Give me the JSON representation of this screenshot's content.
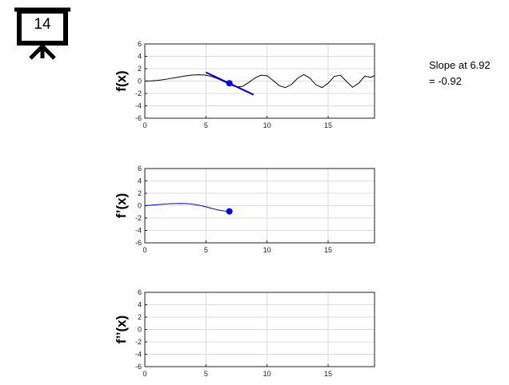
{
  "slide_badge": {
    "number": "14",
    "icon": "presentation-board-icon"
  },
  "slope_readout": {
    "line1": "Slope at 6.92",
    "line2": "= -0.92"
  },
  "chart_data": [
    {
      "type": "line",
      "ylabel": "f(x)",
      "xlim": [
        0,
        18.8
      ],
      "ylim": [
        -6,
        6
      ],
      "xticks": [
        0,
        5,
        10,
        15
      ],
      "yticks": [
        -6,
        -4,
        -2,
        0,
        2,
        4,
        6
      ],
      "grid": true,
      "series": [
        {
          "color": "#000000",
          "x": [
            0,
            0.5,
            1,
            1.5,
            2,
            2.5,
            3,
            3.5,
            4,
            4.5,
            5,
            5.5,
            6,
            6.5,
            7,
            7.5,
            8,
            8.5,
            9,
            9.5,
            10,
            10.5,
            11,
            11.5,
            12,
            12.5,
            13,
            13.5,
            14,
            14.5,
            15,
            15.5,
            16,
            16.5,
            17,
            17.5,
            18,
            18.5,
            18.8
          ],
          "y": [
            0,
            0.03,
            0.1,
            0.22,
            0.38,
            0.55,
            0.72,
            0.88,
            0.98,
            1.02,
            0.95,
            0.72,
            0.35,
            -0.1,
            -0.6,
            -0.95,
            -0.85,
            -0.25,
            0.5,
            0.95,
            0.85,
            0.1,
            -0.75,
            -1.05,
            -0.55,
            0.45,
            1.05,
            0.5,
            -0.6,
            -1.05,
            -0.35,
            0.75,
            0.95,
            -0.05,
            -1.0,
            -0.35,
            0.8,
            0.6,
            0.9
          ]
        }
      ],
      "marker_point": {
        "x": 6.92,
        "y": -0.35,
        "color": "#0000ee"
      },
      "tangent_line": {
        "x": [
          5.0,
          8.9
        ],
        "y": [
          1.4,
          -2.2
        ],
        "color": "#0000cc"
      }
    },
    {
      "type": "line",
      "ylabel": "f’(x)",
      "xlim": [
        0,
        18.8
      ],
      "ylim": [
        -6,
        6
      ],
      "xticks": [
        0,
        5,
        10,
        15
      ],
      "yticks": [
        -6,
        -4,
        -2,
        0,
        2,
        4,
        6
      ],
      "grid": true,
      "series": [
        {
          "color": "#0000cc",
          "x": [
            0,
            0.5,
            1,
            1.5,
            2,
            2.5,
            3,
            3.5,
            4,
            4.5,
            5,
            5.5,
            6,
            6.5,
            6.92
          ],
          "y": [
            0,
            0.08,
            0.16,
            0.24,
            0.3,
            0.34,
            0.35,
            0.32,
            0.22,
            0.05,
            -0.18,
            -0.45,
            -0.7,
            -0.85,
            -0.92
          ]
        }
      ],
      "marker_point": {
        "x": 6.92,
        "y": -0.92,
        "color": "#0000ee"
      }
    },
    {
      "type": "line",
      "ylabel": "f’’(x)",
      "xlim": [
        0,
        18.8
      ],
      "ylim": [
        -6,
        6
      ],
      "xticks": [
        0,
        5,
        10,
        15
      ],
      "yticks": [
        -6,
        -4,
        -2,
        0,
        2,
        4,
        6
      ],
      "grid": true,
      "series": []
    }
  ]
}
